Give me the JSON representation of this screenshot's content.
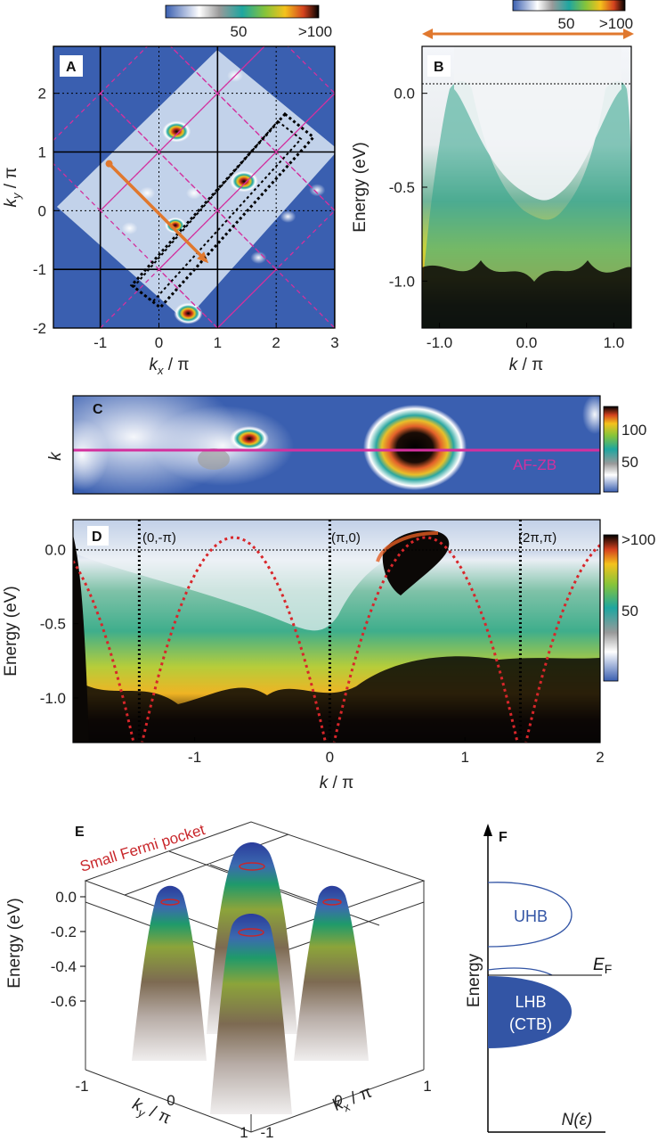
{
  "panels": {
    "A": {
      "label": "A"
    },
    "B": {
      "label": "B"
    },
    "C": {
      "label": "C",
      "line_label": "AF-ZB"
    },
    "D": {
      "label": "D",
      "markers": [
        "(0,-π)",
        "(π,0)",
        "(2π,π)"
      ]
    },
    "E": {
      "label": "E",
      "annotation": "Small Fermi pocket"
    },
    "F": {
      "label": "F",
      "ylabel": "Energy",
      "xlabel": "N(ε)",
      "uhb": "UHB",
      "lhb": "LHB",
      "ctb": "(CTB)",
      "ef": "E",
      "ef_sub": "F"
    }
  },
  "colorbars": {
    "top_A": {
      "labels": [
        "50",
        ">100"
      ]
    },
    "top_B": {
      "labels": [
        "50",
        ">100"
      ]
    },
    "C": {
      "labels": [
        "100",
        "50"
      ]
    },
    "D": {
      "labels": [
        ">100",
        "50"
      ]
    }
  },
  "colors": {
    "map_blue": "#3a5fb0",
    "magenta": "#d3309e",
    "orange": "#e0782e",
    "red_dash": "#d8262a",
    "uhb_blue": "#3355a5"
  },
  "chart_data": [
    {
      "type": "heatmap",
      "panel": "A",
      "xlabel": "k_x / π",
      "ylabel": "k_y / π",
      "xlim": [
        -1.8,
        3
      ],
      "ylim": [
        -2,
        2.8
      ],
      "xticks": [
        "-1",
        "0",
        "1",
        "2",
        "3"
      ],
      "yticks": [
        "-2",
        "-1",
        "0",
        "1",
        "2"
      ],
      "xticks_v": [
        -1,
        0,
        1,
        2,
        3
      ],
      "yticks_v": [
        -2,
        -1,
        0,
        1,
        2
      ],
      "hot_spots": [
        [
          0.3,
          1.35
        ],
        [
          1.45,
          0.5
        ],
        [
          0.5,
          -1.75
        ],
        [
          0.28,
          -0.25
        ]
      ],
      "cut_line": [
        [
          -0.85,
          0.8
        ],
        [
          0.8,
          -0.85
        ]
      ]
    },
    {
      "type": "heatmap",
      "panel": "B",
      "xlabel": "k / π",
      "ylabel": "Energy (eV)",
      "xlim": [
        -1.2,
        1.2
      ],
      "ylim": [
        -1.25,
        0.25
      ],
      "xticks": [
        "-1.0",
        "0.0",
        "1.0"
      ],
      "yticks": [
        "-1.0",
        "-0.5",
        "0.0"
      ],
      "xticks_v": [
        -1.0,
        0.0,
        1.0
      ],
      "yticks_v": [
        -1.0,
        -0.5,
        0.0
      ]
    },
    {
      "type": "heatmap",
      "panel": "C",
      "ylabel": "k",
      "xlim": [
        -1.9,
        2.0
      ]
    },
    {
      "type": "heatmap",
      "panel": "D",
      "xlabel": "k / π",
      "ylabel": "Energy (eV)",
      "xlim": [
        -1.9,
        2.0
      ],
      "ylim": [
        -1.3,
        0.2
      ],
      "xticks": [
        "-1",
        "0",
        "1",
        "2"
      ],
      "yticks": [
        "-1.0",
        "-0.5",
        "0.0"
      ],
      "xticks_v": [
        -1,
        0,
        1,
        2
      ],
      "yticks_v": [
        -1.0,
        -0.5,
        0.0
      ],
      "marker_k": [
        -1.41,
        0,
        1.41
      ],
      "dispersion_peaks": [
        -0.71,
        0.71
      ]
    },
    {
      "type": "area",
      "panel": "E",
      "zlabel": "Energy (eV)",
      "xlabel": "k_x / π",
      "ylabel": "k_y / π",
      "zticks": [
        "0.0",
        "-0.2",
        "-0.4",
        "-0.6"
      ],
      "xticks": [
        "-1",
        "0",
        "1"
      ],
      "yticks": [
        "-1",
        "0",
        "1"
      ]
    }
  ]
}
